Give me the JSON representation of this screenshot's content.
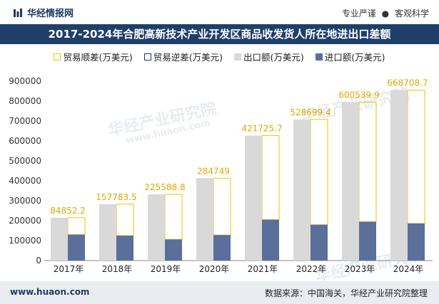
{
  "header": {
    "brand": "华经情报网",
    "tag1": "专业严谨",
    "tag_sep": "●",
    "tag2": "客观科学"
  },
  "title": "2017-2024年合肥高新技术产业开发区商品收发货人所在地进出口差额",
  "legend": {
    "surplus": "贸易顺差(万美元)",
    "deficit": "贸易逆差(万美元)",
    "export": "出口额(万美元)",
    "import": "进口额(万美元)"
  },
  "watermark": {
    "name": "华经产业研究院",
    "url": "www.huaon.com"
  },
  "footer": {
    "site": "www.huaon.com",
    "source": "数据来源：中国海关，华经产业研究院整理"
  },
  "colors": {
    "title_bg": "#1f3f6b",
    "export": "#d9d9d9",
    "import": "#5b6f9b",
    "surplus_border": "#f2c200",
    "deficit_border": "#1f3f6b",
    "label": "#e0a800"
  },
  "chart_data": {
    "type": "bar",
    "categories": [
      "2017年",
      "2018年",
      "2019年",
      "2020年",
      "2021年",
      "2022年",
      "2023年",
      "2024年"
    ],
    "series": [
      {
        "name": "出口额(万美元)",
        "values": [
          215000,
          283000,
          332000,
          413000,
          627000,
          708000,
          795000,
          855000
        ]
      },
      {
        "name": "进口额(万美元)",
        "values": [
          130000,
          125000,
          106000,
          128000,
          205000,
          180000,
          195000,
          186000
        ]
      },
      {
        "name": "贸易顺差(万美元)",
        "values": [
          84852.2,
          157783.5,
          225588.8,
          284749,
          421725.7,
          528699.4,
          600539.9,
          668708.7
        ]
      },
      {
        "name": "贸易逆差(万美元)",
        "values": [
          0,
          0,
          0,
          0,
          0,
          0,
          0,
          0
        ]
      }
    ],
    "data_labels": [
      "84852.2",
      "157783.5",
      "225588.8",
      "284749",
      "421725.7",
      "528699.4",
      "600539.9",
      "668708.7"
    ],
    "ylim": [
      0,
      900000
    ],
    "yticks": [
      "0",
      "100000",
      "200000",
      "300000",
      "400000",
      "500000",
      "600000",
      "700000",
      "800000",
      "900000"
    ],
    "ytick_values": [
      0,
      100000,
      200000,
      300000,
      400000,
      500000,
      600000,
      700000,
      800000,
      900000
    ],
    "xlabel": "",
    "ylabel": ""
  }
}
